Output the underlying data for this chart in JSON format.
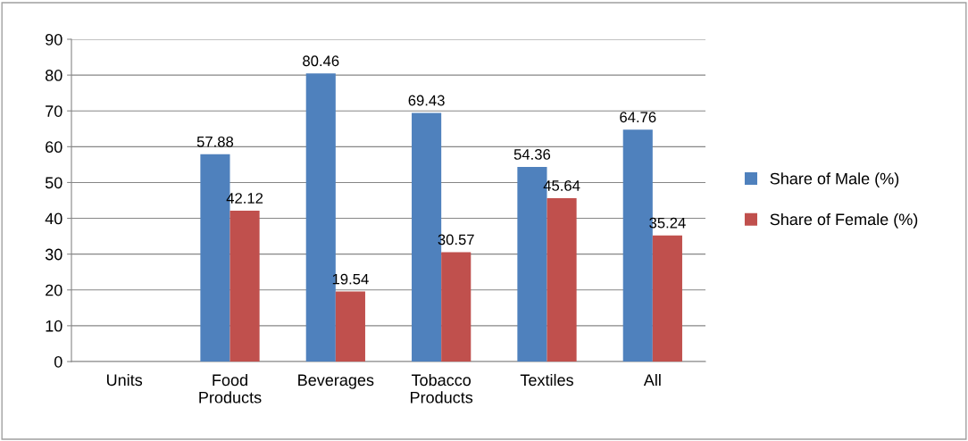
{
  "chart_data": {
    "type": "bar",
    "categories": [
      "Units",
      "Food\nProducts",
      "Beverages",
      "Tobacco\nProducts",
      "Textiles",
      "All"
    ],
    "series": [
      {
        "name": "Share of Male (%)",
        "color": "#4f81bd",
        "values": [
          null,
          57.88,
          80.46,
          69.43,
          54.36,
          64.76
        ]
      },
      {
        "name": "Share of Female (%)",
        "color": "#c0504d",
        "values": [
          null,
          42.12,
          19.54,
          30.57,
          45.64,
          35.24
        ]
      }
    ],
    "ylim": [
      0,
      90
    ],
    "yticks": [
      0,
      10,
      20,
      30,
      40,
      50,
      60,
      70,
      80,
      90
    ],
    "grid": "y",
    "legend": "right",
    "data_labels": true
  }
}
